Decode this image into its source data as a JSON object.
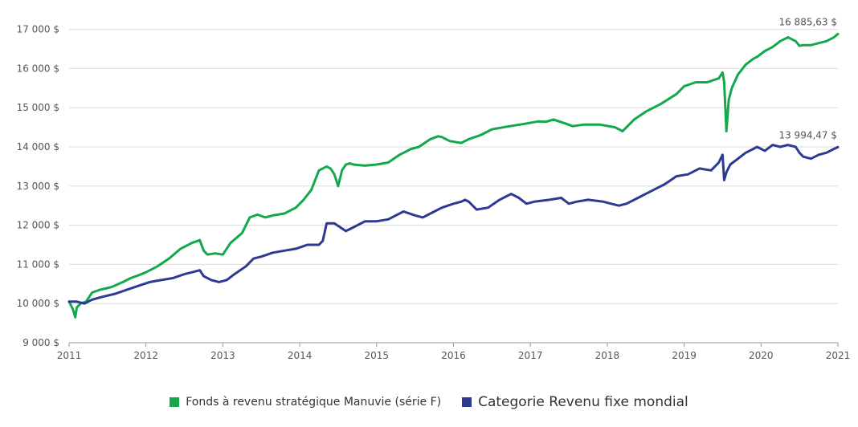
{
  "chart_data": {
    "type": "line",
    "title": "",
    "xlabel": "",
    "ylabel": "",
    "ylim": [
      9000,
      17300
    ],
    "xlim": [
      2011,
      2021
    ],
    "y_ticks": [
      9000,
      10000,
      11000,
      12000,
      13000,
      14000,
      15000,
      16000,
      17000
    ],
    "y_tick_labels": [
      "9 000 $",
      "10 000 $",
      "11 000 $",
      "12 000 $",
      "13 000 $",
      "14 000 $",
      "15 000 $",
      "16 000 $",
      "17 000 $"
    ],
    "x_ticks": [
      2011,
      2012,
      2013,
      2014,
      2015,
      2016,
      2017,
      2018,
      2019,
      2020,
      2021
    ],
    "x_tick_labels": [
      "2011",
      "2012",
      "2013",
      "2014",
      "2015",
      "2016",
      "2017",
      "2018",
      "2019",
      "2020",
      "2021"
    ],
    "grid": "horizontal",
    "legend_position": "bottom",
    "series": [
      {
        "name": "Fonds à revenu stratégique Manuvie (série F)",
        "color": "#12a94c",
        "end_label": "16 885,63 $",
        "x": [
          2011.0,
          2011.05,
          2011.08,
          2011.1,
          2011.15,
          2011.22,
          2011.3,
          2011.4,
          2011.55,
          2011.7,
          2011.8,
          2011.9,
          2012.0,
          2012.15,
          2012.3,
          2012.45,
          2012.6,
          2012.7,
          2012.75,
          2012.8,
          2012.9,
          2013.0,
          2013.1,
          2013.25,
          2013.35,
          2013.45,
          2013.55,
          2013.65,
          2013.8,
          2013.95,
          2014.05,
          2014.15,
          2014.25,
          2014.35,
          2014.4,
          2014.45,
          2014.5,
          2014.55,
          2014.6,
          2014.65,
          2014.7,
          2014.75,
          2014.85,
          2015.0,
          2015.15,
          2015.3,
          2015.45,
          2015.55,
          2015.7,
          2015.8,
          2015.85,
          2015.95,
          2016.1,
          2016.15,
          2016.2,
          2016.35,
          2016.5,
          2016.7,
          2016.9,
          2017.1,
          2017.2,
          2017.3,
          2017.45,
          2017.55,
          2017.7,
          2017.9,
          2018.1,
          2018.2,
          2018.25,
          2018.35,
          2018.5,
          2018.7,
          2018.9,
          2019.0,
          2019.15,
          2019.3,
          2019.45,
          2019.5,
          2019.52,
          2019.55,
          2019.58,
          2019.62,
          2019.7,
          2019.8,
          2019.9,
          2019.95,
          2020.05,
          2020.15,
          2020.25,
          2020.35,
          2020.45,
          2020.5,
          2020.55,
          2020.65,
          2020.75,
          2020.85,
          2020.95,
          2021.0
        ],
        "y": [
          10050,
          9850,
          9650,
          9900,
          10000,
          10050,
          10280,
          10350,
          10420,
          10550,
          10650,
          10720,
          10800,
          10950,
          11150,
          11400,
          11550,
          11620,
          11350,
          11250,
          11280,
          11250,
          11550,
          11800,
          12200,
          12270,
          12200,
          12250,
          12300,
          12450,
          12650,
          12900,
          13400,
          13500,
          13450,
          13300,
          13000,
          13400,
          13550,
          13580,
          13550,
          13540,
          13520,
          13550,
          13600,
          13800,
          13950,
          14000,
          14200,
          14270,
          14250,
          14150,
          14100,
          14150,
          14200,
          14300,
          14450,
          14520,
          14580,
          14650,
          14640,
          14700,
          14600,
          14530,
          14570,
          14570,
          14500,
          14400,
          14500,
          14700,
          14900,
          15100,
          15350,
          15550,
          15650,
          15650,
          15750,
          15900,
          15650,
          14400,
          15200,
          15500,
          15850,
          16100,
          16250,
          16300,
          16450,
          16550,
          16700,
          16800,
          16700,
          16580,
          16600,
          16600,
          16650,
          16700,
          16800,
          16885
        ]
      },
      {
        "name": "Categorie Revenu fixe mondial",
        "color": "#2e3a92",
        "end_label": "13 994,47 $",
        "x": [
          2011.0,
          2011.1,
          2011.2,
          2011.3,
          2011.45,
          2011.6,
          2011.75,
          2011.9,
          2012.05,
          2012.2,
          2012.35,
          2012.5,
          2012.6,
          2012.7,
          2012.75,
          2012.85,
          2012.95,
          2013.05,
          2013.15,
          2013.3,
          2013.4,
          2013.5,
          2013.65,
          2013.8,
          2013.95,
          2014.1,
          2014.25,
          2014.3,
          2014.35,
          2014.45,
          2014.6,
          2014.7,
          2014.85,
          2015.0,
          2015.15,
          2015.25,
          2015.35,
          2015.5,
          2015.6,
          2015.7,
          2015.85,
          2016.0,
          2016.1,
          2016.15,
          2016.2,
          2016.3,
          2016.45,
          2016.6,
          2016.7,
          2016.75,
          2016.85,
          2016.95,
          2017.05,
          2017.25,
          2017.4,
          2017.5,
          2017.6,
          2017.75,
          2017.95,
          2018.05,
          2018.15,
          2018.25,
          2018.4,
          2018.5,
          2018.6,
          2018.75,
          2018.9,
          2019.05,
          2019.2,
          2019.35,
          2019.45,
          2019.5,
          2019.52,
          2019.55,
          2019.6,
          2019.7,
          2019.8,
          2019.9,
          2019.95,
          2020.05,
          2020.15,
          2020.25,
          2020.35,
          2020.45,
          2020.5,
          2020.55,
          2020.65,
          2020.75,
          2020.85,
          2020.95,
          2021.0
        ],
        "y": [
          10050,
          10050,
          10000,
          10100,
          10180,
          10250,
          10350,
          10450,
          10550,
          10600,
          10650,
          10750,
          10800,
          10850,
          10700,
          10600,
          10550,
          10600,
          10750,
          10950,
          11150,
          11200,
          11300,
          11350,
          11400,
          11500,
          11500,
          11600,
          12050,
          12050,
          11850,
          11950,
          12100,
          12100,
          12150,
          12250,
          12350,
          12250,
          12200,
          12300,
          12450,
          12550,
          12600,
          12650,
          12600,
          12400,
          12450,
          12650,
          12750,
          12800,
          12700,
          12550,
          12600,
          12650,
          12700,
          12550,
          12600,
          12650,
          12600,
          12550,
          12500,
          12550,
          12700,
          12800,
          12900,
          13050,
          13250,
          13300,
          13450,
          13400,
          13600,
          13800,
          13150,
          13350,
          13550,
          13700,
          13850,
          13950,
          14000,
          13900,
          14050,
          14000,
          14050,
          14000,
          13850,
          13750,
          13700,
          13800,
          13850,
          13950,
          13994
        ]
      }
    ]
  }
}
